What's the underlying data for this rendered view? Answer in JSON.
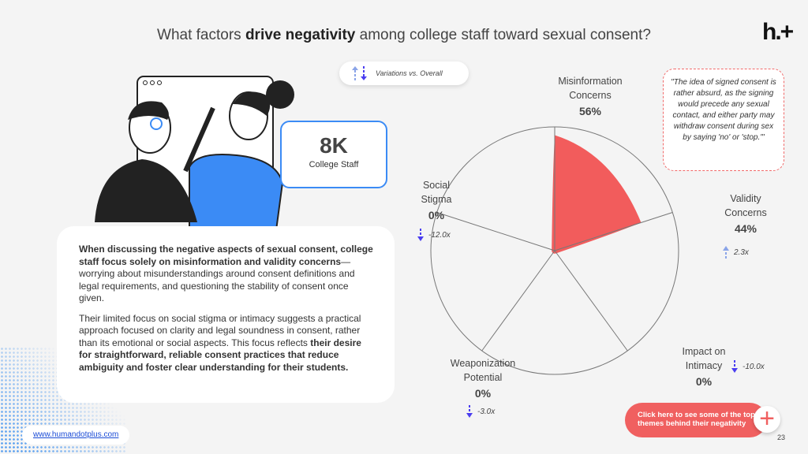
{
  "header": {
    "title_pre": "What factors ",
    "title_bold": "drive negativity",
    "title_post": " among college staff toward sexual consent?",
    "logo": "h.+"
  },
  "legend": {
    "label": "Variations vs. Overall"
  },
  "quote": "\"The idea of signed consent is rather absurd, as the signing would precede any sexual contact, and either party may withdraw consent during sex by saying 'no' or 'stop.'\"",
  "stat": {
    "value": "8K",
    "label": "College Staff"
  },
  "body": {
    "p1_bold": "When discussing the negative aspects of sexual consent, college staff focus solely on misinformation and validity concerns",
    "p1_rest": "—worrying about misunderstandings around consent definitions and legal requirements, and questioning the stability of consent once given.",
    "p2_rest": "Their limited focus on social stigma or intimacy suggests a practical approach focused on clarity and legal soundness in consent, rather than its emotional or social aspects. This focus reflects ",
    "p2_bold": "their desire for straightforward, reliable consent practices that reduce ambiguity and foster clear understanding for their students."
  },
  "chart_data": {
    "type": "radar",
    "categories": [
      "Misinformation Concerns",
      "Validity Concerns",
      "Impact on Intimacy",
      "Weaponization Potential",
      "Social Stigma"
    ],
    "values": [
      56,
      44,
      0,
      0,
      0
    ],
    "value_labels": [
      "56%",
      "44%",
      "0%",
      "0%",
      "0%"
    ],
    "variations": [
      null,
      "2.3x",
      "-10.0x",
      "-3.0x",
      "-12.0x"
    ],
    "variation_dirs": [
      null,
      "up",
      "down",
      "down",
      "down"
    ],
    "max": 60,
    "color": "#f25c5c"
  },
  "labels": {
    "mis1": "Misinformation",
    "mis2": "Concerns",
    "val1": "Validity",
    "val2": "Concerns",
    "imp1": "Impact on",
    "imp2": "Intimacy",
    "wea1": "Weaponization",
    "wea2": "Potential",
    "soc1": "Social",
    "soc2": "Stigma"
  },
  "footer": {
    "url": "www.humandotplus.com",
    "cta": "Click here to see some of the top themes behind their negativity",
    "page": "23"
  },
  "colors": {
    "accent": "#f06060",
    "blue": "#3b8bf5",
    "down": "#4a3df0",
    "up": "#8aa4e8"
  }
}
